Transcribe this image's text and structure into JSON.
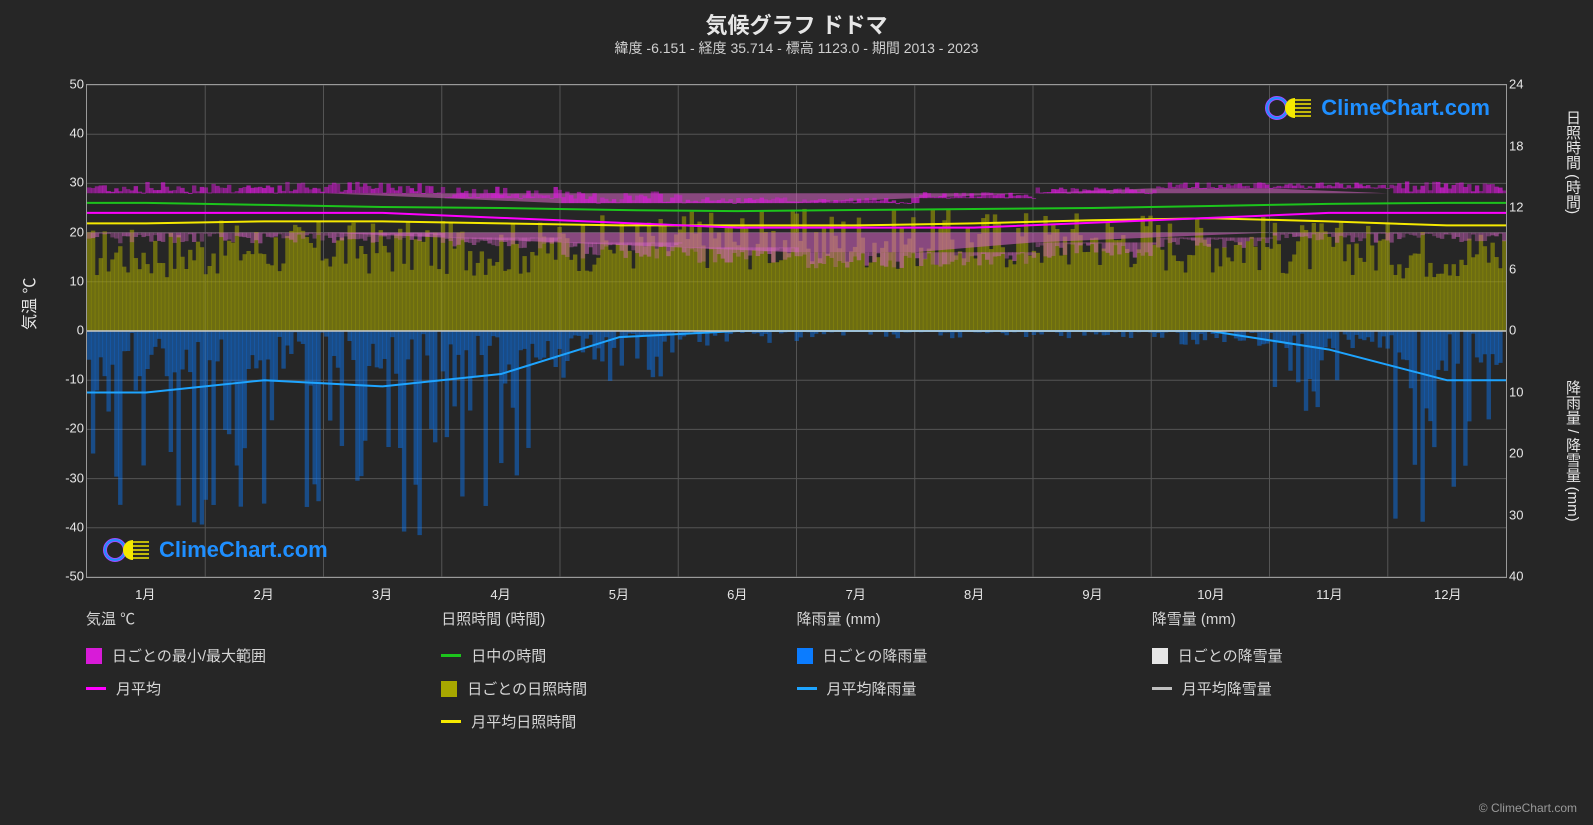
{
  "title": "気候グラフ ドドマ",
  "subtitle": "緯度 -6.151 - 経度 35.714 - 標高 1123.0 - 期間 2013 - 2023",
  "credit": "© ClimeChart.com",
  "watermark_text": "ClimeChart.com",
  "background_color": "#262626",
  "plot_border_color": "#9a9a9a",
  "grid_color": "#545454",
  "axis_left": {
    "label": "気温 ℃",
    "min": -50,
    "max": 50,
    "step": 10,
    "ticks": [
      50,
      40,
      30,
      20,
      10,
      0,
      -10,
      -20,
      -30,
      -40,
      -50
    ]
  },
  "axis_right_top": {
    "label": "日照時間 (時間)",
    "min": 0,
    "max": 24,
    "step": 6,
    "ticks": [
      24,
      18,
      12,
      6,
      0
    ]
  },
  "axis_right_bottom": {
    "label": "降雨量 / 降雪量 (mm)",
    "min": 40,
    "max": 0,
    "step": 10,
    "ticks": [
      0,
      10,
      20,
      30,
      40
    ]
  },
  "months": [
    "1月",
    "2月",
    "3月",
    "4月",
    "5月",
    "6月",
    "7月",
    "8月",
    "9月",
    "10月",
    "11月",
    "12月"
  ],
  "series": {
    "temp_range": {
      "color": "#d81bd8",
      "max": [
        30,
        30,
        30,
        29,
        28,
        27,
        27,
        28,
        29,
        30,
        30,
        30
      ],
      "high": [
        28,
        28,
        28,
        27,
        26,
        26,
        26,
        27,
        28,
        29,
        29,
        28
      ],
      "low": [
        20,
        20,
        20,
        19,
        18,
        17,
        16,
        16,
        18,
        19,
        20,
        20
      ],
      "min": [
        18,
        18,
        18,
        17,
        15,
        14,
        13,
        13,
        15,
        17,
        18,
        18
      ]
    },
    "temp_avg": {
      "color": "#ff00ff",
      "data": [
        24,
        24,
        24,
        23,
        22,
        21,
        21,
        21,
        22,
        23,
        24,
        24
      ]
    },
    "daytime_hours": {
      "color": "#1cc41c",
      "data": [
        12.5,
        12.3,
        12.1,
        12.0,
        11.8,
        11.7,
        11.8,
        11.9,
        12.0,
        12.2,
        12.4,
        12.5
      ]
    },
    "sun_hours_range": {
      "color": "#a8a800",
      "data": [
        8.5,
        9.0,
        9.0,
        9.0,
        9.5,
        10.0,
        10.0,
        10.0,
        10.0,
        9.5,
        9.0,
        8.5
      ]
    },
    "sun_hours_avg": {
      "color": "#f5e900",
      "data": [
        10.5,
        10.7,
        10.7,
        10.5,
        10.3,
        10.3,
        10.3,
        10.5,
        10.8,
        11.0,
        10.7,
        10.3
      ]
    },
    "rain_daily_max": {
      "color": "#0b7cff",
      "data": [
        30,
        26,
        28,
        24,
        7,
        2,
        1,
        1,
        1,
        2,
        12,
        28
      ]
    },
    "rain_avg": {
      "color": "#1ea4ff",
      "data": [
        10,
        8,
        9,
        7,
        1,
        0,
        0,
        0,
        0,
        0,
        3,
        8
      ]
    },
    "snow_daily": {
      "color": "#e6e6e6",
      "data": [
        0,
        0,
        0,
        0,
        0,
        0,
        0,
        0,
        0,
        0,
        0,
        0
      ]
    },
    "snow_avg": {
      "color": "#bfbfbf",
      "data": [
        0,
        0,
        0,
        0,
        0,
        0,
        0,
        0,
        0,
        0,
        0,
        0
      ]
    }
  },
  "legend": {
    "temp": {
      "heading": "気温 ℃",
      "items": [
        {
          "label": "日ごとの最小/最大範囲",
          "swatch": "#d81bd8",
          "type": "box"
        },
        {
          "label": "月平均",
          "swatch": "#ff00ff",
          "type": "line"
        }
      ]
    },
    "sun": {
      "heading": "日照時間 (時間)",
      "items": [
        {
          "label": "日中の時間",
          "swatch": "#1cc41c",
          "type": "line"
        },
        {
          "label": "日ごとの日照時間",
          "swatch": "#a8a800",
          "type": "box"
        },
        {
          "label": "月平均日照時間",
          "swatch": "#f5e900",
          "type": "line"
        }
      ]
    },
    "rain": {
      "heading": "降雨量 (mm)",
      "items": [
        {
          "label": "日ごとの降雨量",
          "swatch": "#0b7cff",
          "type": "box"
        },
        {
          "label": "月平均降雨量",
          "swatch": "#1ea4ff",
          "type": "line"
        }
      ]
    },
    "snow": {
      "heading": "降雪量 (mm)",
      "items": [
        {
          "label": "日ごとの降雪量",
          "swatch": "#e6e6e6",
          "type": "box"
        },
        {
          "label": "月平均降雪量",
          "swatch": "#bfbfbf",
          "type": "line"
        }
      ]
    }
  }
}
